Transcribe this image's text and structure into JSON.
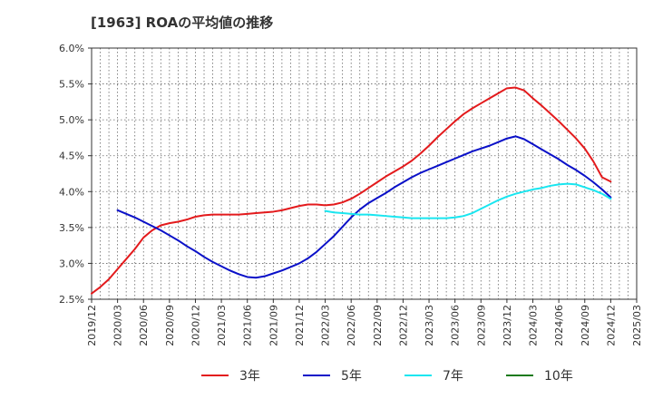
{
  "title": "[1963]  ROAの平均値の推移",
  "chart_data": {
    "type": "line",
    "title": "[1963]  ROAの平均値の推移",
    "xlabel": "",
    "ylabel": "",
    "x_ticks": [
      "2019/12",
      "2020/03",
      "2020/06",
      "2020/09",
      "2020/12",
      "2021/03",
      "2021/06",
      "2021/09",
      "2021/12",
      "2022/03",
      "2022/06",
      "2022/09",
      "2022/12",
      "2023/03",
      "2023/06",
      "2023/09",
      "2023/12",
      "2024/03",
      "2024/06",
      "2024/09",
      "2024/12",
      "2025/03"
    ],
    "y_ticks": [
      "2.5%",
      "3.0%",
      "3.5%",
      "4.0%",
      "4.5%",
      "5.0%",
      "5.5%",
      "6.0%"
    ],
    "ylim": [
      2.5,
      6.0
    ],
    "y_unit": "%",
    "grid": true,
    "legend_position": "bottom",
    "series": [
      {
        "name": "3年",
        "color": "#e31a1c",
        "points": [
          [
            "2019/12",
            2.58
          ],
          [
            "2020/01",
            2.67
          ],
          [
            "2020/02",
            2.78
          ],
          [
            "2020/03",
            2.92
          ],
          [
            "2020/04",
            3.06
          ],
          [
            "2020/05",
            3.2
          ],
          [
            "2020/06",
            3.36
          ],
          [
            "2020/07",
            3.46
          ],
          [
            "2020/08",
            3.53
          ],
          [
            "2020/09",
            3.56
          ],
          [
            "2020/10",
            3.58
          ],
          [
            "2020/11",
            3.61
          ],
          [
            "2020/12",
            3.65
          ],
          [
            "2021/01",
            3.67
          ],
          [
            "2021/02",
            3.68
          ],
          [
            "2021/03",
            3.68
          ],
          [
            "2021/04",
            3.68
          ],
          [
            "2021/05",
            3.68
          ],
          [
            "2021/06",
            3.69
          ],
          [
            "2021/07",
            3.7
          ],
          [
            "2021/08",
            3.71
          ],
          [
            "2021/09",
            3.72
          ],
          [
            "2021/10",
            3.74
          ],
          [
            "2021/11",
            3.77
          ],
          [
            "2021/12",
            3.8
          ],
          [
            "2022/01",
            3.82
          ],
          [
            "2022/02",
            3.82
          ],
          [
            "2022/03",
            3.81
          ],
          [
            "2022/04",
            3.82
          ],
          [
            "2022/05",
            3.85
          ],
          [
            "2022/06",
            3.9
          ],
          [
            "2022/07",
            3.97
          ],
          [
            "2022/08",
            4.05
          ],
          [
            "2022/09",
            4.13
          ],
          [
            "2022/10",
            4.21
          ],
          [
            "2022/11",
            4.28
          ],
          [
            "2022/12",
            4.35
          ],
          [
            "2023/01",
            4.43
          ],
          [
            "2023/02",
            4.53
          ],
          [
            "2023/03",
            4.64
          ],
          [
            "2023/04",
            4.76
          ],
          [
            "2023/05",
            4.87
          ],
          [
            "2023/06",
            4.98
          ],
          [
            "2023/07",
            5.08
          ],
          [
            "2023/08",
            5.16
          ],
          [
            "2023/09",
            5.23
          ],
          [
            "2023/10",
            5.3
          ],
          [
            "2023/11",
            5.37
          ],
          [
            "2023/12",
            5.44
          ],
          [
            "2024/01",
            5.45
          ],
          [
            "2024/02",
            5.41
          ],
          [
            "2024/03",
            5.3
          ],
          [
            "2024/04",
            5.2
          ],
          [
            "2024/05",
            5.09
          ],
          [
            "2024/06",
            4.98
          ],
          [
            "2024/07",
            4.86
          ],
          [
            "2024/08",
            4.74
          ],
          [
            "2024/09",
            4.6
          ],
          [
            "2024/10",
            4.42
          ],
          [
            "2024/11",
            4.2
          ],
          [
            "2024/12",
            4.14
          ]
        ]
      },
      {
        "name": "5年",
        "color": "#0a10c8",
        "points": [
          [
            "2020/03",
            3.74
          ],
          [
            "2020/04",
            3.69
          ],
          [
            "2020/05",
            3.64
          ],
          [
            "2020/06",
            3.58
          ],
          [
            "2020/07",
            3.52
          ],
          [
            "2020/08",
            3.46
          ],
          [
            "2020/09",
            3.39
          ],
          [
            "2020/10",
            3.32
          ],
          [
            "2020/11",
            3.24
          ],
          [
            "2020/12",
            3.17
          ],
          [
            "2021/01",
            3.09
          ],
          [
            "2021/02",
            3.02
          ],
          [
            "2021/03",
            2.96
          ],
          [
            "2021/04",
            2.9
          ],
          [
            "2021/05",
            2.85
          ],
          [
            "2021/06",
            2.81
          ],
          [
            "2021/07",
            2.8
          ],
          [
            "2021/08",
            2.82
          ],
          [
            "2021/09",
            2.86
          ],
          [
            "2021/10",
            2.9
          ],
          [
            "2021/11",
            2.95
          ],
          [
            "2021/12",
            3.0
          ],
          [
            "2022/01",
            3.07
          ],
          [
            "2022/02",
            3.16
          ],
          [
            "2022/03",
            3.27
          ],
          [
            "2022/04",
            3.38
          ],
          [
            "2022/05",
            3.51
          ],
          [
            "2022/06",
            3.64
          ],
          [
            "2022/07",
            3.75
          ],
          [
            "2022/08",
            3.84
          ],
          [
            "2022/09",
            3.91
          ],
          [
            "2022/10",
            3.98
          ],
          [
            "2022/11",
            4.06
          ],
          [
            "2022/12",
            4.13
          ],
          [
            "2023/01",
            4.2
          ],
          [
            "2023/02",
            4.26
          ],
          [
            "2023/03",
            4.31
          ],
          [
            "2023/04",
            4.36
          ],
          [
            "2023/05",
            4.41
          ],
          [
            "2023/06",
            4.46
          ],
          [
            "2023/07",
            4.51
          ],
          [
            "2023/08",
            4.56
          ],
          [
            "2023/09",
            4.6
          ],
          [
            "2023/10",
            4.64
          ],
          [
            "2023/11",
            4.69
          ],
          [
            "2023/12",
            4.74
          ],
          [
            "2024/01",
            4.77
          ],
          [
            "2024/02",
            4.73
          ],
          [
            "2024/03",
            4.66
          ],
          [
            "2024/04",
            4.59
          ],
          [
            "2024/05",
            4.52
          ],
          [
            "2024/06",
            4.45
          ],
          [
            "2024/07",
            4.37
          ],
          [
            "2024/08",
            4.3
          ],
          [
            "2024/09",
            4.22
          ],
          [
            "2024/10",
            4.13
          ],
          [
            "2024/11",
            4.03
          ],
          [
            "2024/12",
            3.92
          ]
        ]
      },
      {
        "name": "7年",
        "color": "#19e6f0",
        "points": [
          [
            "2022/03",
            3.73
          ],
          [
            "2022/04",
            3.71
          ],
          [
            "2022/05",
            3.7
          ],
          [
            "2022/06",
            3.69
          ],
          [
            "2022/07",
            3.68
          ],
          [
            "2022/08",
            3.68
          ],
          [
            "2022/09",
            3.67
          ],
          [
            "2022/10",
            3.66
          ],
          [
            "2022/11",
            3.65
          ],
          [
            "2022/12",
            3.64
          ],
          [
            "2023/01",
            3.63
          ],
          [
            "2023/02",
            3.63
          ],
          [
            "2023/03",
            3.63
          ],
          [
            "2023/04",
            3.63
          ],
          [
            "2023/05",
            3.63
          ],
          [
            "2023/06",
            3.64
          ],
          [
            "2023/07",
            3.66
          ],
          [
            "2023/08",
            3.7
          ],
          [
            "2023/09",
            3.76
          ],
          [
            "2023/10",
            3.82
          ],
          [
            "2023/11",
            3.88
          ],
          [
            "2023/12",
            3.93
          ],
          [
            "2024/01",
            3.97
          ],
          [
            "2024/02",
            4.0
          ],
          [
            "2024/03",
            4.03
          ],
          [
            "2024/04",
            4.05
          ],
          [
            "2024/05",
            4.08
          ],
          [
            "2024/06",
            4.1
          ],
          [
            "2024/07",
            4.11
          ],
          [
            "2024/08",
            4.1
          ],
          [
            "2024/09",
            4.06
          ],
          [
            "2024/10",
            4.02
          ],
          [
            "2024/11",
            3.97
          ],
          [
            "2024/12",
            3.9
          ]
        ]
      },
      {
        "name": "10年",
        "color": "#1a7a1a",
        "points": []
      }
    ]
  }
}
